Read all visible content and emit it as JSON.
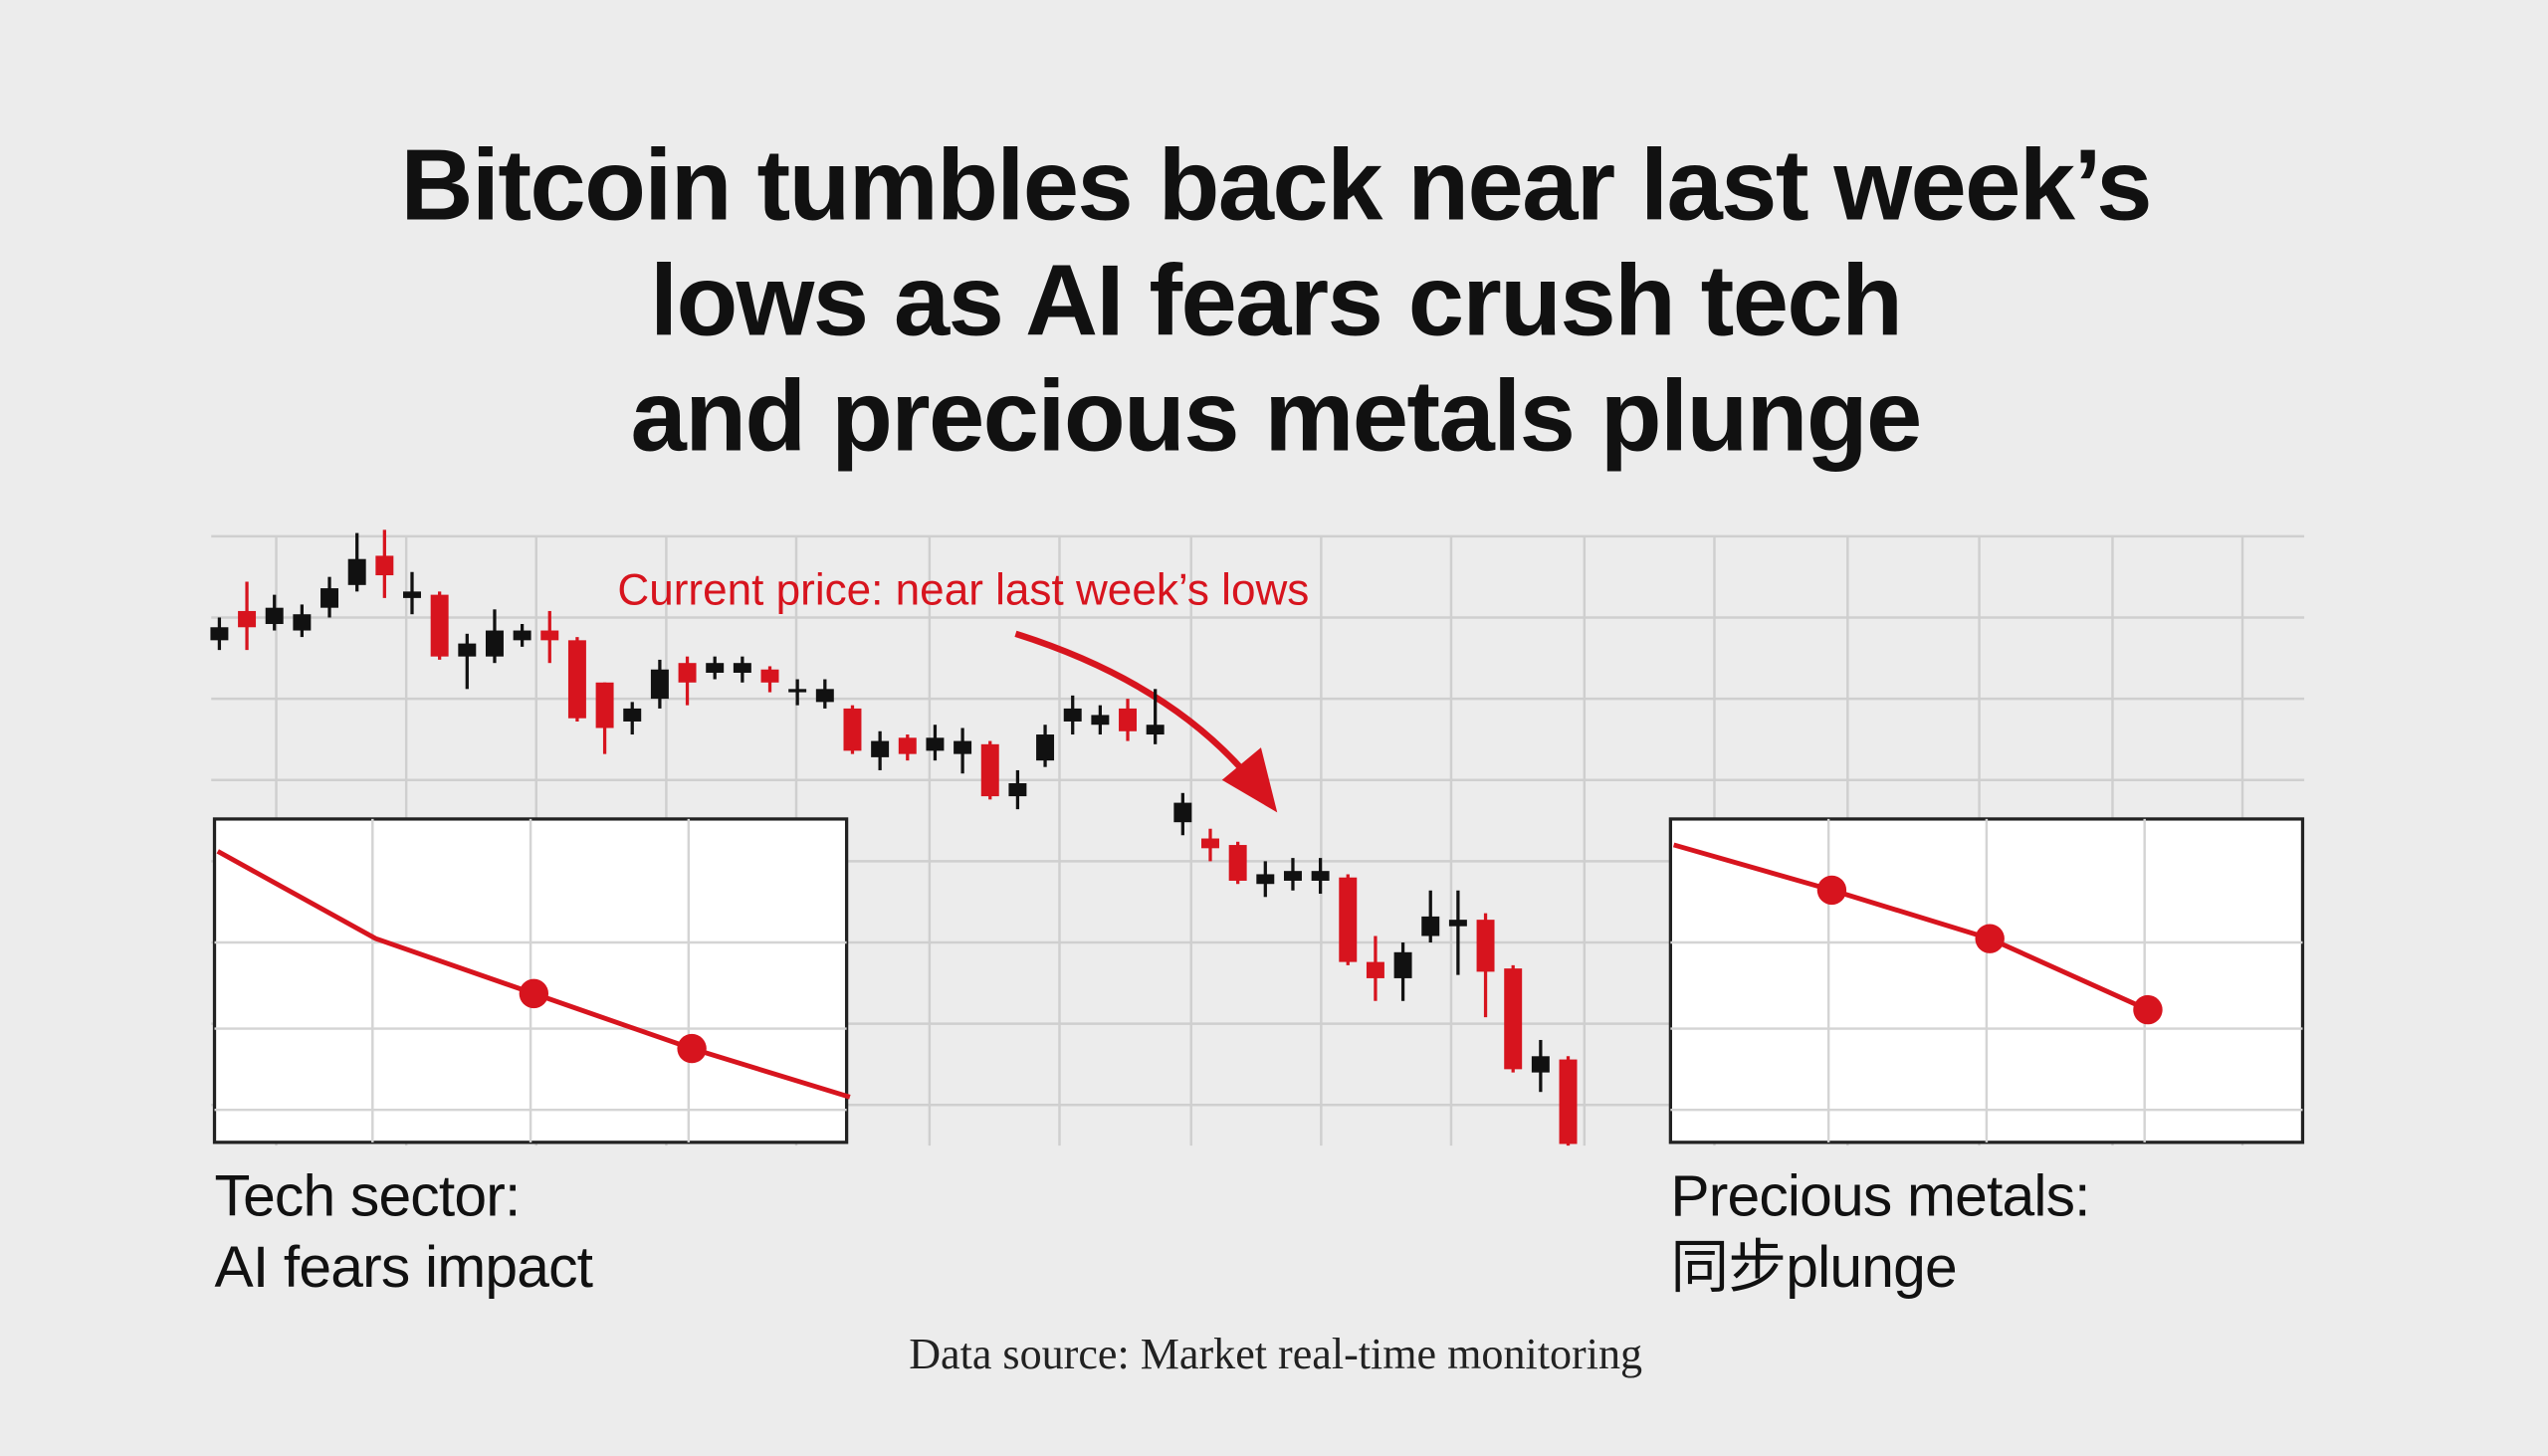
{
  "title_lines": [
    "Bitcoin tumbles back near last week’s",
    "lows as AI fears crush tech",
    "and precious metals plunge"
  ],
  "source": "Data source: Market real-time monitoring",
  "chart_data": [
    {
      "type": "candlestick",
      "annotation": "Current price: near last week’s lows",
      "up_color": "#111111",
      "down_color": "#d7141e",
      "ylim": [
        0,
        78
      ],
      "open": [
        62.2,
        65.8,
        64.2,
        63.4,
        66.2,
        69,
        72.6,
        67.4,
        67.8,
        60.2,
        60.2,
        62.2,
        63.4,
        62.2,
        57,
        52.2,
        55,
        59.4,
        58.2,
        58.2,
        58.6,
        55.8,
        54.6,
        53.8,
        47.8,
        50.2,
        48.6,
        48.2,
        49.4,
        43,
        47.4,
        52.2,
        51.8,
        53.8,
        50.6,
        39.8,
        37.8,
        37,
        32.2,
        32.6,
        32.6,
        33,
        22.6,
        20.6,
        25.8,
        27,
        27.8,
        21.8,
        9,
        10.6
      ],
      "close": [
        63.8,
        63.8,
        66.2,
        65.4,
        68.6,
        72.2,
        70.2,
        68.2,
        60.2,
        61.8,
        63.4,
        63.4,
        62.2,
        52.6,
        51.4,
        53.8,
        58.6,
        57,
        59.4,
        59.4,
        57,
        56.2,
        56.2,
        48.6,
        49.8,
        48.2,
        50.2,
        49.8,
        43,
        44.6,
        50.6,
        53.8,
        53,
        51,
        51.8,
        42.2,
        36.6,
        32.6,
        33.4,
        33.8,
        33.8,
        22.6,
        20.6,
        23.8,
        28.2,
        27.8,
        21.4,
        9.4,
        11,
        0.2
      ],
      "high": [
        65,
        69.4,
        67.8,
        66.6,
        70,
        75.4,
        75.8,
        70.6,
        68.2,
        63,
        66,
        64.2,
        65.8,
        62.6,
        57,
        54.6,
        59.8,
        60.2,
        60.2,
        60.2,
        59,
        57.4,
        57.4,
        54.2,
        51,
        50.6,
        51.8,
        51.4,
        49.8,
        46.2,
        51.8,
        55.4,
        54.2,
        55,
        56.2,
        43.4,
        39,
        37.4,
        35,
        35.4,
        35.4,
        33.4,
        25.8,
        25,
        31.4,
        31.4,
        28.6,
        22.2,
        13,
        11
      ],
      "low": [
        61,
        61,
        63.4,
        62.6,
        65,
        68.2,
        67.4,
        65.4,
        59.8,
        56.2,
        59.4,
        61.4,
        59.4,
        52.2,
        48.2,
        50.6,
        53.8,
        54.2,
        57.4,
        57,
        55.8,
        54.2,
        53.8,
        48.2,
        46.2,
        47.4,
        47.4,
        45.8,
        42.6,
        41.4,
        46.6,
        50.6,
        50.6,
        49.8,
        49.4,
        38.2,
        35,
        32.2,
        30.6,
        31.4,
        31,
        22.2,
        17.8,
        17.8,
        25,
        21,
        15.8,
        9,
        6.6,
        0
      ]
    },
    {
      "type": "line",
      "label_lines": [
        "Tech sector:",
        "AI fears impact"
      ],
      "color": "#d7141e",
      "ylim": [
        0,
        100
      ],
      "values": [
        90,
        63,
        46,
        29,
        14
      ],
      "markers": [
        false,
        false,
        true,
        true,
        false
      ]
    },
    {
      "type": "line",
      "label_lines": [
        "Precious metals:",
        "同步plunge"
      ],
      "color": "#d7141e",
      "ylim": [
        0,
        100
      ],
      "values": [
        92,
        78,
        63,
        41
      ],
      "markers": [
        false,
        true,
        true,
        true
      ]
    }
  ]
}
